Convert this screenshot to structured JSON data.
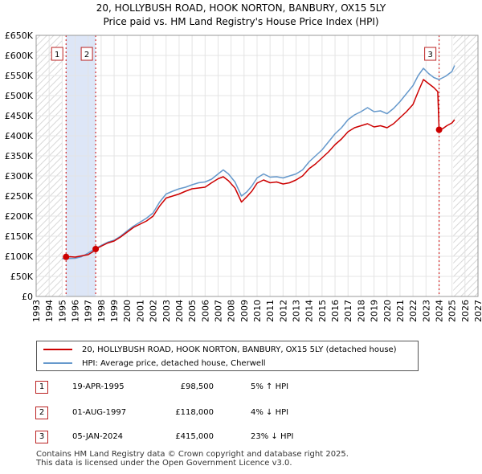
{
  "chart_data": {
    "type": "line",
    "title": "20, HOLLYBUSH ROAD, HOOK NORTON, BANBURY, OX15 5LY",
    "subtitle": "Price paid vs. HM Land Registry's House Price Index (HPI)",
    "xlabel": "",
    "ylabel": "",
    "xlim": [
      1993,
      2027
    ],
    "ylim": [
      0,
      650000
    ],
    "x_ticks": [
      "1993",
      "1994",
      "1995",
      "1996",
      "1997",
      "1998",
      "1999",
      "2000",
      "2001",
      "2002",
      "2003",
      "2004",
      "2005",
      "2006",
      "2007",
      "2008",
      "2009",
      "2010",
      "2011",
      "2012",
      "2013",
      "2014",
      "2015",
      "2016",
      "2017",
      "2018",
      "2019",
      "2020",
      "2021",
      "2022",
      "2023",
      "2024",
      "2025",
      "2026",
      "2027"
    ],
    "y_ticks": [
      "£0",
      "£50K",
      "£100K",
      "£150K",
      "£200K",
      "£250K",
      "£300K",
      "£350K",
      "£400K",
      "£450K",
      "£500K",
      "£550K",
      "£600K",
      "£650K"
    ],
    "grid": true,
    "colors": {
      "property": "#cc0000",
      "hpi": "#6699cc",
      "shade": "#dde6f7",
      "hatch": "#d8d8d8"
    },
    "series": [
      {
        "name": "20, HOLLYBUSH ROAD, HOOK NORTON, BANBURY, OX15 5LY (detached house)",
        "x": [
          1995.3,
          1995.6,
          1996.0,
          1996.5,
          1997.0,
          1997.4,
          1997.58,
          1998.0,
          1998.5,
          1999.0,
          1999.5,
          2000.0,
          2000.5,
          2001.0,
          2001.5,
          2002.0,
          2002.5,
          2003.0,
          2003.5,
          2004.0,
          2004.5,
          2005.0,
          2005.5,
          2006.0,
          2006.5,
          2007.0,
          2007.4,
          2007.8,
          2008.3,
          2008.8,
          2009.2,
          2009.6,
          2010.0,
          2010.5,
          2011.0,
          2011.5,
          2012.0,
          2012.5,
          2013.0,
          2013.5,
          2014.0,
          2014.5,
          2015.0,
          2015.5,
          2016.0,
          2016.5,
          2017.0,
          2017.5,
          2018.0,
          2018.5,
          2019.0,
          2019.5,
          2020.0,
          2020.5,
          2021.0,
          2021.5,
          2022.0,
          2022.4,
          2022.8,
          2023.2,
          2023.6,
          2023.9,
          2024.01,
          2024.3,
          2024.6,
          2025.0,
          2025.2
        ],
        "values": [
          98500,
          99000,
          98000,
          101000,
          104000,
          112000,
          118000,
          125000,
          133000,
          138000,
          148000,
          160000,
          172000,
          180000,
          188000,
          200000,
          225000,
          245000,
          250000,
          255000,
          262000,
          268000,
          270000,
          272000,
          283000,
          293000,
          298000,
          288000,
          270000,
          235000,
          248000,
          262000,
          282000,
          290000,
          283000,
          285000,
          280000,
          283000,
          290000,
          300000,
          318000,
          330000,
          345000,
          360000,
          378000,
          392000,
          410000,
          420000,
          425000,
          430000,
          422000,
          425000,
          420000,
          430000,
          445000,
          460000,
          478000,
          510000,
          540000,
          530000,
          520000,
          510000,
          415000,
          418000,
          425000,
          432000,
          440000
        ]
      },
      {
        "name": "HPI: Average price, detached house, Cherwell",
        "x": [
          1995.0,
          1995.5,
          1996.0,
          1996.5,
          1997.0,
          1997.5,
          1998.0,
          1998.5,
          1999.0,
          1999.5,
          2000.0,
          2000.5,
          2001.0,
          2001.5,
          2002.0,
          2002.5,
          2003.0,
          2003.5,
          2004.0,
          2004.5,
          2005.0,
          2005.5,
          2006.0,
          2006.5,
          2007.0,
          2007.4,
          2007.8,
          2008.3,
          2008.8,
          2009.2,
          2009.6,
          2010.0,
          2010.5,
          2011.0,
          2011.5,
          2012.0,
          2012.5,
          2013.0,
          2013.5,
          2014.0,
          2014.5,
          2015.0,
          2015.5,
          2016.0,
          2016.5,
          2017.0,
          2017.5,
          2018.0,
          2018.5,
          2019.0,
          2019.5,
          2020.0,
          2020.5,
          2021.0,
          2021.5,
          2022.0,
          2022.4,
          2022.8,
          2023.2,
          2023.6,
          2024.0,
          2024.5,
          2025.0,
          2025.2
        ],
        "values": [
          94000,
          94500,
          95000,
          99000,
          108000,
          118000,
          127000,
          135000,
          140000,
          150000,
          163000,
          175000,
          185000,
          195000,
          208000,
          235000,
          255000,
          262000,
          268000,
          272000,
          278000,
          283000,
          285000,
          292000,
          305000,
          315000,
          305000,
          285000,
          250000,
          260000,
          275000,
          295000,
          305000,
          297000,
          298000,
          295000,
          300000,
          305000,
          315000,
          335000,
          350000,
          365000,
          385000,
          405000,
          420000,
          440000,
          452000,
          460000,
          470000,
          460000,
          462000,
          455000,
          468000,
          485000,
          505000,
          525000,
          550000,
          568000,
          555000,
          545000,
          540000,
          548000,
          560000,
          575000
        ]
      }
    ],
    "sales": [
      {
        "label": "1",
        "x": 1995.3,
        "value": 98500
      },
      {
        "label": "2",
        "x": 1997.58,
        "value": 118000
      },
      {
        "label": "3",
        "x": 2024.01,
        "value": 415000
      }
    ]
  },
  "legend": {
    "property_label": "20, HOLLYBUSH ROAD, HOOK NORTON, BANBURY, OX15 5LY (detached house)",
    "hpi_label": "HPI: Average price, detached house, Cherwell"
  },
  "transactions": [
    {
      "num": "1",
      "date": "19-APR-1995",
      "price": "£98,500",
      "hpi": "5% ↑ HPI"
    },
    {
      "num": "2",
      "date": "01-AUG-1997",
      "price": "£118,000",
      "hpi": "4% ↓ HPI"
    },
    {
      "num": "3",
      "date": "05-JAN-2024",
      "price": "£415,000",
      "hpi": "23% ↓ HPI"
    }
  ],
  "footer": {
    "line1": "Contains HM Land Registry data © Crown copyright and database right 2025.",
    "line2": "This data is licensed under the Open Government Licence v3.0."
  }
}
